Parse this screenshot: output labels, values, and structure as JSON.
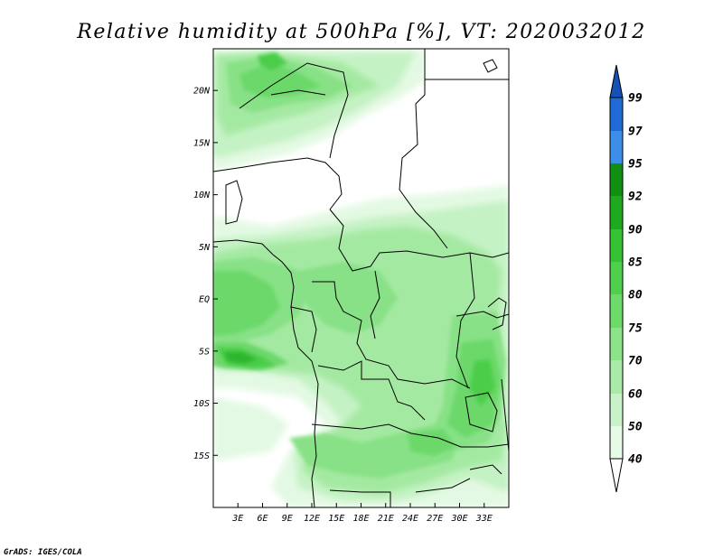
{
  "title": "Relative humidity at 500hPa [%], VT: 2020032012",
  "credit": "GrADS: IGES/COLA",
  "map": {
    "lon_range": [
      0,
      36
    ],
    "lat_range": [
      -20,
      24
    ],
    "lat_ticks": [
      {
        "value": 20,
        "label": "20N"
      },
      {
        "value": 15,
        "label": "15N"
      },
      {
        "value": 10,
        "label": "10N"
      },
      {
        "value": 5,
        "label": "5N"
      },
      {
        "value": 0,
        "label": "EQ"
      },
      {
        "value": -5,
        "label": "5S"
      },
      {
        "value": -10,
        "label": "10S"
      },
      {
        "value": -15,
        "label": "15S"
      }
    ],
    "lon_ticks": [
      {
        "value": 3,
        "label": "3E"
      },
      {
        "value": 6,
        "label": "6E"
      },
      {
        "value": 9,
        "label": "9E"
      },
      {
        "value": 12,
        "label": "12E"
      },
      {
        "value": 15,
        "label": "15E"
      },
      {
        "value": 18,
        "label": "18E"
      },
      {
        "value": 21,
        "label": "21E"
      },
      {
        "value": 24,
        "label": "24E"
      },
      {
        "value": 27,
        "label": "27E"
      },
      {
        "value": 30,
        "label": "30E"
      },
      {
        "value": 33,
        "label": "33E"
      }
    ]
  },
  "colorbar": {
    "levels": [
      "40",
      "50",
      "60",
      "70",
      "75",
      "80",
      "85",
      "90",
      "92",
      "95",
      "97",
      "99"
    ],
    "colors": [
      "#ffffff",
      "#e6fbe6",
      "#c8f3c8",
      "#aaeaa8",
      "#8be489",
      "#6cdb6a",
      "#4fd04d",
      "#35c233",
      "#1fa91d",
      "#118f10",
      "#3c8ee8",
      "#1f6bd6",
      "#1552b8"
    ]
  }
}
